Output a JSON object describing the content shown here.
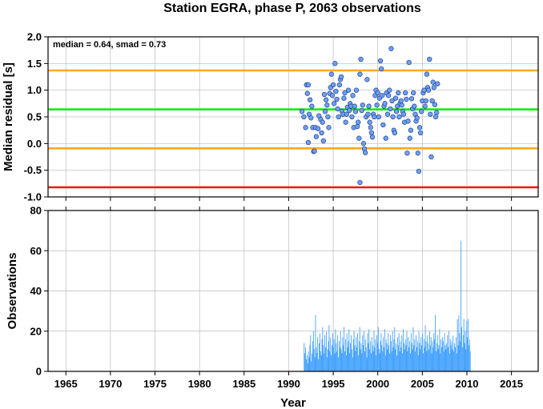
{
  "title": "Station EGRA, phase P, 2063 observations",
  "chart_data": [
    {
      "type": "scatter",
      "ylabel": "Median residual [s]",
      "xlim": [
        1963,
        2018
      ],
      "ylim": [
        -1.0,
        2.0
      ],
      "yticks": [
        -1.0,
        -0.5,
        0.0,
        0.5,
        1.0,
        1.5,
        2.0
      ],
      "ytick_labels": [
        "-1.0",
        "-0.5",
        "0.0",
        "0.5",
        "1.0",
        "1.5",
        "2.0"
      ],
      "grid": true,
      "annotation": "median = 0.64, smad = 0.73",
      "reference_lines": [
        {
          "y": 0.64,
          "color": "#00ee00"
        },
        {
          "y": 1.37,
          "color": "#ffaa22"
        },
        {
          "y": -0.09,
          "color": "#ffaa22"
        },
        {
          "y": -0.82,
          "color": "#ff1111"
        }
      ],
      "marker_color": "#6fa0f0",
      "points": [
        [
          1991.5,
          0.6
        ],
        [
          1991.7,
          0.5
        ],
        [
          1991.9,
          0.3
        ],
        [
          1992.0,
          1.1
        ],
        [
          1992.1,
          0.94
        ],
        [
          1992.2,
          1.1
        ],
        [
          1992.2,
          0.02
        ],
        [
          1992.3,
          0.55
        ],
        [
          1992.4,
          0.82
        ],
        [
          1992.5,
          0.48
        ],
        [
          1992.6,
          0.7
        ],
        [
          1992.7,
          0.3
        ],
        [
          1992.8,
          -0.15
        ],
        [
          1992.9,
          -0.14
        ],
        [
          1993.0,
          0.3
        ],
        [
          1993.1,
          0.13
        ],
        [
          1993.3,
          0.28
        ],
        [
          1993.4,
          0.52
        ],
        [
          1993.6,
          0.45
        ],
        [
          1993.7,
          0.2
        ],
        [
          1993.8,
          0.4
        ],
        [
          1993.9,
          0.05
        ],
        [
          1994.0,
          0.92
        ],
        [
          1994.1,
          0.6
        ],
        [
          1994.2,
          0.82
        ],
        [
          1994.3,
          0.72
        ],
        [
          1994.4,
          0.5
        ],
        [
          1994.5,
          0.3
        ],
        [
          1994.6,
          0.94
        ],
        [
          1994.7,
          1.05
        ],
        [
          1994.8,
          1.3
        ],
        [
          1994.9,
          0.9
        ],
        [
          1995.0,
          1.1
        ],
        [
          1995.1,
          0.75
        ],
        [
          1995.2,
          1.5
        ],
        [
          1995.3,
          0.98
        ],
        [
          1995.4,
          0.83
        ],
        [
          1995.5,
          0.65
        ],
        [
          1995.6,
          0.5
        ],
        [
          1995.7,
          1.1
        ],
        [
          1995.8,
          1.2
        ],
        [
          1995.9,
          1.25
        ],
        [
          1996.0,
          0.6
        ],
        [
          1996.1,
          0.55
        ],
        [
          1996.2,
          0.85
        ],
        [
          1996.3,
          0.95
        ],
        [
          1996.4,
          0.4
        ],
        [
          1996.5,
          0.55
        ],
        [
          1996.6,
          0.68
        ],
        [
          1996.7,
          1.0
        ],
        [
          1996.8,
          0.62
        ],
        [
          1996.9,
          0.75
        ],
        [
          1997.0,
          0.7
        ],
        [
          1997.1,
          0.5
        ],
        [
          1997.2,
          0.9
        ],
        [
          1997.3,
          0.3
        ],
        [
          1997.4,
          0.7
        ],
        [
          1997.5,
          0.6
        ],
        [
          1997.6,
          1.0
        ],
        [
          1997.7,
          0.32
        ],
        [
          1997.8,
          0.4
        ],
        [
          1997.9,
          0.1
        ],
        [
          1998.0,
          1.3
        ],
        [
          1998.0,
          -0.73
        ],
        [
          1998.1,
          1.58
        ],
        [
          1998.2,
          0.62
        ],
        [
          1998.3,
          0.72
        ],
        [
          1998.4,
          0.0
        ],
        [
          1998.5,
          -0.1
        ],
        [
          1998.6,
          -0.17
        ],
        [
          1998.7,
          0.5
        ],
        [
          1998.8,
          1.2
        ],
        [
          1998.9,
          0.55
        ],
        [
          1999.0,
          0.7
        ],
        [
          1999.1,
          0.4
        ],
        [
          1999.2,
          0.3
        ],
        [
          1999.3,
          0.2
        ],
        [
          1999.4,
          0.12
        ],
        [
          1999.5,
          0.55
        ],
        [
          1999.6,
          0.5
        ],
        [
          1999.7,
          0.9
        ],
        [
          1999.8,
          1.0
        ],
        [
          1999.9,
          0.72
        ],
        [
          2000.0,
          0.95
        ],
        [
          2000.1,
          0.5
        ],
        [
          2000.2,
          0.85
        ],
        [
          2000.3,
          1.55
        ],
        [
          2000.4,
          1.4
        ],
        [
          2000.5,
          0.9
        ],
        [
          2000.6,
          0.35
        ],
        [
          2000.7,
          0.7
        ],
        [
          2000.8,
          0.75
        ],
        [
          2000.9,
          0.1
        ],
        [
          2001.0,
          0.95
        ],
        [
          2001.1,
          0.55
        ],
        [
          2001.2,
          0.9
        ],
        [
          2001.3,
          1.0
        ],
        [
          2001.4,
          0.65
        ],
        [
          2001.5,
          1.78
        ],
        [
          2001.6,
          0.8
        ],
        [
          2001.7,
          0.5
        ],
        [
          2001.8,
          0.25
        ],
        [
          2001.9,
          0.2
        ],
        [
          2002.0,
          0.85
        ],
        [
          2002.1,
          0.6
        ],
        [
          2002.2,
          0.7
        ],
        [
          2002.3,
          0.95
        ],
        [
          2002.4,
          0.5
        ],
        [
          2002.5,
          0.75
        ],
        [
          2002.6,
          0.8
        ],
        [
          2002.7,
          0.72
        ],
        [
          2002.8,
          0.6
        ],
        [
          2002.9,
          0.55
        ],
        [
          2003.0,
          0.4
        ],
        [
          2003.1,
          0.95
        ],
        [
          2003.2,
          0.83
        ],
        [
          2003.3,
          -0.18
        ],
        [
          2003.4,
          0.42
        ],
        [
          2003.5,
          1.52
        ],
        [
          2003.6,
          0.1
        ],
        [
          2003.7,
          0.25
        ],
        [
          2003.8,
          0.84
        ],
        [
          2003.9,
          0.65
        ],
        [
          2004.0,
          0.95
        ],
        [
          2004.1,
          0.7
        ],
        [
          2004.2,
          0.55
        ],
        [
          2004.3,
          0.42
        ],
        [
          2004.4,
          0.48
        ],
        [
          2004.5,
          -0.18
        ],
        [
          2004.6,
          -0.52
        ],
        [
          2004.7,
          0.3
        ],
        [
          2004.8,
          0.2
        ],
        [
          2004.9,
          0.6
        ],
        [
          2005.0,
          0.8
        ],
        [
          2005.1,
          0.95
        ],
        [
          2005.2,
          1.0
        ],
        [
          2005.3,
          0.7
        ],
        [
          2005.4,
          0.8
        ],
        [
          2005.5,
          1.3
        ],
        [
          2005.6,
          1.05
        ],
        [
          2005.7,
          1.0
        ],
        [
          2005.8,
          1.58
        ],
        [
          2005.9,
          0.55
        ],
        [
          2006.0,
          -0.25
        ],
        [
          2006.1,
          0.8
        ],
        [
          2006.2,
          1.15
        ],
        [
          2006.3,
          1.05
        ],
        [
          2006.4,
          0.73
        ],
        [
          2006.5,
          0.5
        ],
        [
          2006.6,
          0.58
        ],
        [
          2006.7,
          1.12
        ]
      ]
    },
    {
      "type": "bar",
      "ylabel": "Observations",
      "xlabel": "Year",
      "xlim": [
        1963,
        2018
      ],
      "ylim": [
        0,
        80
      ],
      "xticks": [
        1965,
        1970,
        1975,
        1980,
        1985,
        1990,
        1995,
        2000,
        2005,
        2010,
        2015
      ],
      "xtick_labels": [
        "1965",
        "1970",
        "1975",
        "1980",
        "1985",
        "1990",
        "1995",
        "2000",
        "2005",
        "2010",
        "2015"
      ],
      "yticks": [
        0,
        20,
        40,
        60,
        80
      ],
      "ytick_labels": [
        "0",
        "20",
        "40",
        "60",
        "80"
      ],
      "grid": true,
      "bar_color": "#3399ff",
      "bars_x_start": 1991.7,
      "bars_x_step": 0.08,
      "bars": [
        14,
        9,
        12,
        6,
        8,
        4,
        10,
        7,
        13,
        18,
        5,
        9,
        15,
        20,
        11,
        7,
        28,
        12,
        9,
        17,
        6,
        14,
        19,
        10,
        8,
        16,
        22,
        13,
        9,
        18,
        12,
        20,
        7,
        11,
        15,
        23,
        10,
        17,
        8,
        13,
        19,
        12,
        16,
        9,
        21,
        14,
        10,
        18,
        7,
        15,
        12,
        20,
        11,
        9,
        17,
        13,
        22,
        10,
        16,
        8,
        19,
        12,
        15,
        21,
        9,
        14,
        18,
        11,
        7,
        16,
        20,
        13,
        10,
        17,
        12,
        19,
        8,
        15,
        22,
        11,
        14,
        9,
        18,
        13,
        20,
        10,
        16,
        12,
        7,
        19,
        14,
        21,
        11,
        15,
        9,
        17,
        13,
        10,
        20,
        12,
        16,
        8,
        18,
        14,
        22,
        11,
        9,
        15,
        19,
        13,
        10,
        17,
        12,
        21,
        8,
        16,
        14,
        11,
        19,
        13,
        9,
        18,
        15,
        10,
        20,
        12,
        16,
        22,
        11,
        14,
        8,
        17,
        13,
        19,
        10,
        15,
        12,
        18,
        9,
        21,
        14,
        11,
        16,
        13,
        20,
        10,
        17,
        12,
        15,
        9,
        19,
        14,
        11,
        22,
        13,
        16,
        10,
        18,
        12,
        15,
        8,
        20,
        14,
        11,
        17,
        13,
        19,
        9,
        16,
        12,
        23,
        15,
        10,
        18,
        14,
        11,
        20,
        13,
        17,
        9,
        15,
        12,
        19,
        16,
        28,
        10,
        14,
        18,
        11,
        13,
        21,
        9,
        16,
        12,
        17,
        15,
        10,
        19,
        13,
        11,
        14,
        18,
        12,
        20,
        9,
        16,
        13,
        15,
        11,
        18,
        10,
        14,
        12,
        17,
        9,
        26,
        13,
        28,
        19,
        15,
        65,
        22,
        12,
        18,
        26,
        14,
        20,
        11,
        25,
        17,
        26,
        13,
        16,
        10
      ]
    }
  ]
}
